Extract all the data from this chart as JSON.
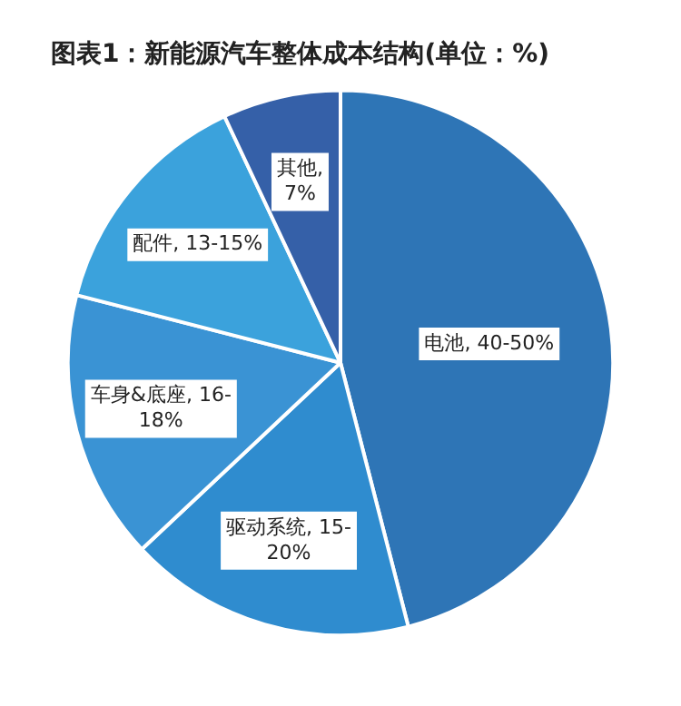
{
  "chart_data": {
    "type": "pie",
    "title": "图表1：新能源汽车整体成本结构(单位：%)",
    "categories": [
      "电池, 40-50%",
      "驱动系统, 15-20%",
      "车身&底座, 16-18%",
      "配件, 13-15%",
      "其他, 7%"
    ],
    "values": [
      46,
      17,
      16,
      14,
      7
    ],
    "colors": [
      "#2e75b6",
      "#2f8ccf",
      "#3a93d4",
      "#3ba2dc",
      "#3560a8"
    ],
    "legend": false
  }
}
